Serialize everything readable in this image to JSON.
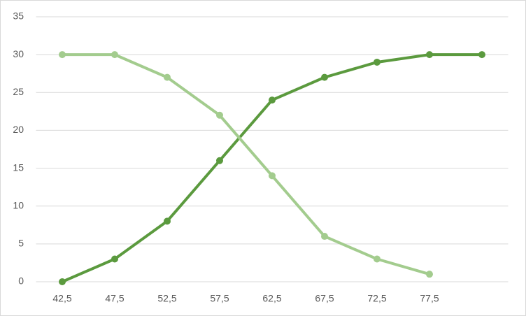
{
  "chart_data": {
    "type": "line",
    "categories": [
      "42,5",
      "47,5",
      "52,5",
      "57,5",
      "62,5",
      "67,5",
      "72,5",
      "77,5",
      null
    ],
    "series": [
      {
        "color": "#5b9a3e",
        "values": [
          0,
          3,
          8,
          16,
          24,
          27,
          29,
          30,
          30
        ]
      },
      {
        "color": "#a3cc8e",
        "values": [
          30,
          30,
          27,
          22,
          14,
          6,
          3,
          1,
          null
        ]
      }
    ],
    "ylim": [
      0,
      35
    ],
    "yticks": [
      0,
      5,
      10,
      15,
      20,
      25,
      30,
      35
    ],
    "grid": true
  }
}
